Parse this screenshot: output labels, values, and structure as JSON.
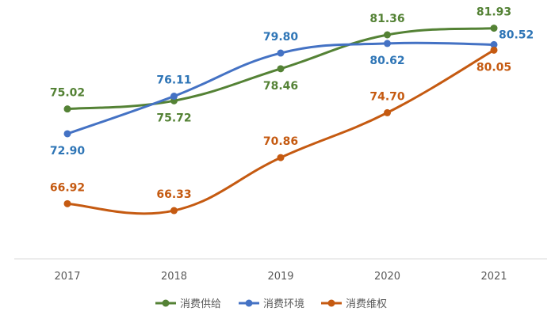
{
  "chart_data": {
    "type": "line",
    "title": "",
    "xlabel": "",
    "ylabel": "",
    "x": [
      "2017",
      "2018",
      "2019",
      "2020",
      "2021"
    ],
    "ylim": [
      62,
      84
    ],
    "grid": false,
    "legend_position": "bottom",
    "series": [
      {
        "name": "消费供给",
        "color": "#548235",
        "values": [
          75.02,
          75.72,
          78.46,
          81.36,
          81.93
        ],
        "labels": [
          "75.02",
          "75.72",
          "78.46",
          "81.36",
          "81.93"
        ],
        "label_side": [
          "above",
          "below",
          "below",
          "above",
          "above"
        ]
      },
      {
        "name": "消费环境",
        "color": "#4472C4",
        "label_color": "#2E75B6",
        "values": [
          72.9,
          76.11,
          79.8,
          80.62,
          80.52
        ],
        "labels": [
          "72.90",
          "76.11",
          "79.80",
          "80.62",
          "80.52"
        ],
        "label_side": [
          "below",
          "above",
          "above",
          "below",
          "right"
        ]
      },
      {
        "name": "消费维权",
        "color": "#C55A11",
        "values": [
          66.92,
          66.33,
          70.86,
          74.7,
          80.05
        ],
        "labels": [
          "66.92",
          "66.33",
          "70.86",
          "74.70",
          "80.05"
        ],
        "label_side": [
          "above",
          "above",
          "above",
          "above",
          "below"
        ]
      }
    ]
  }
}
